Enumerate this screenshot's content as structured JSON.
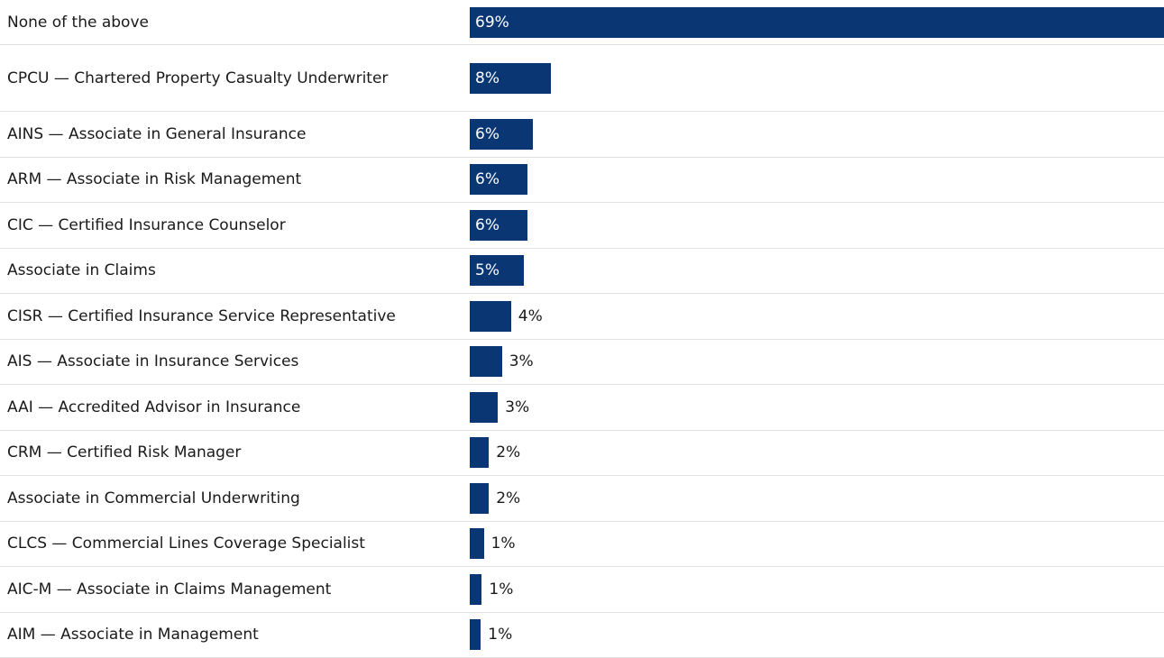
{
  "chart_data": {
    "type": "bar",
    "orientation": "horizontal",
    "color": "#0b3674",
    "categories": [
      "None of the above",
      "CPCU — Chartered Property Casualty Underwriter",
      "AINS — Associate in General Insurance",
      "ARM — Associate in Risk Management",
      "CIC — Certified Insurance Counselor",
      "Associate in Claims",
      "CISR — Certified Insurance Service Representative",
      "AIS — Associate in Insurance Services",
      "AAI — Accredited Advisor in Insurance",
      "CRM — Certified Risk Manager",
      "Associate in Commercial Underwriting",
      "CLCS — Commercial Lines Coverage Specialist",
      "AIC-M — Associate in Claims Management",
      "AIM — Associate in Management"
    ],
    "values": [
      69,
      8.1,
      6.3,
      5.7,
      5.7,
      5.4,
      4.1,
      3.2,
      2.8,
      1.9,
      1.9,
      1.4,
      1.2,
      1.1
    ],
    "value_labels": [
      "69%",
      "8%",
      "6%",
      "6%",
      "6%",
      "5%",
      "4%",
      "3%",
      "3%",
      "2%",
      "2%",
      "1%",
      "1%",
      "1%"
    ]
  }
}
